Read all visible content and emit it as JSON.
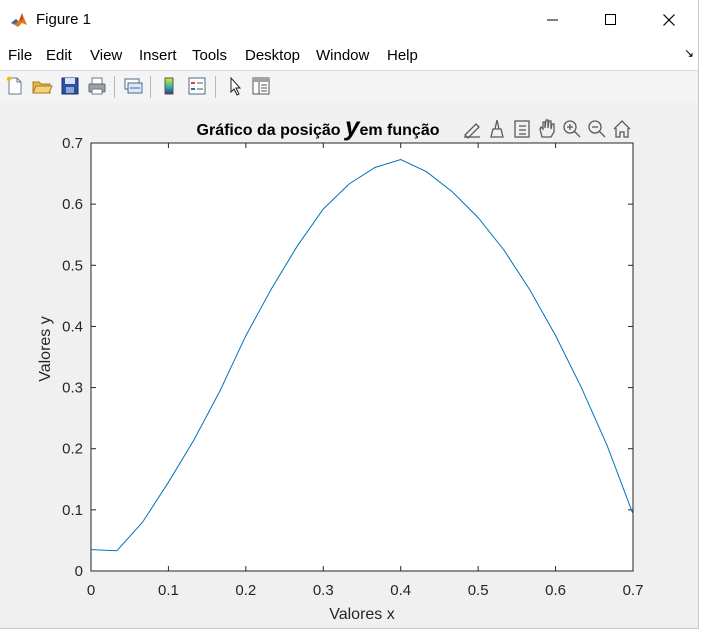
{
  "window": {
    "title": "Figure 1",
    "icon": "matlab-icon",
    "controls": {
      "minimize": "minimize-icon",
      "maximize": "maximize-icon",
      "close": "close-icon"
    }
  },
  "menu": {
    "items": [
      "File",
      "Edit",
      "View",
      "Insert",
      "Tools",
      "Desktop",
      "Window",
      "Help"
    ],
    "overflow_arrow": "↘"
  },
  "toolbar": {
    "buttons": [
      "new-figure-icon",
      "open-file-icon",
      "save-icon",
      "print-icon",
      "link-plot-icon",
      "colorbar-icon",
      "legend-icon",
      "pointer-icon",
      "property-inspector-icon"
    ]
  },
  "axes_toolbar": {
    "buttons": [
      "brush-icon",
      "data-tips-icon",
      "datatip-list-icon",
      "pan-icon",
      "zoom-in-icon",
      "zoom-out-icon",
      "home-icon"
    ]
  },
  "chart_data": {
    "type": "line",
    "title_part1": "Gráfico da posição ",
    "title_y": "y",
    "title_part2": "em função",
    "xlabel": "Valores x",
    "ylabel": "Valores y",
    "xlim": [
      0,
      0.7
    ],
    "ylim": [
      0,
      0.7
    ],
    "xticks": [
      "0",
      "0.1",
      "0.2",
      "0.3",
      "0.4",
      "0.5",
      "0.6",
      "0.7"
    ],
    "yticks": [
      "0",
      "0.1",
      "0.2",
      "0.3",
      "0.4",
      "0.5",
      "0.6",
      "0.7"
    ],
    "grid": false,
    "line_color": "#0072bd",
    "series": [
      {
        "x": [
          0,
          0.0333,
          0.0667,
          0.1,
          0.1333,
          0.1667,
          0.2,
          0.2333,
          0.2667,
          0.3,
          0.3333,
          0.3667,
          0.4,
          0.4333,
          0.4667,
          0.5,
          0.5333,
          0.5667,
          0.6,
          0.6333,
          0.6667,
          0.7
        ],
        "values": [
          0.035,
          0.033,
          0.08,
          0.145,
          0.215,
          0.295,
          0.385,
          0.462,
          0.532,
          0.592,
          0.633,
          0.66,
          0.673,
          0.653,
          0.62,
          0.578,
          0.525,
          0.46,
          0.385,
          0.3,
          0.205,
          0.093
        ]
      }
    ]
  }
}
